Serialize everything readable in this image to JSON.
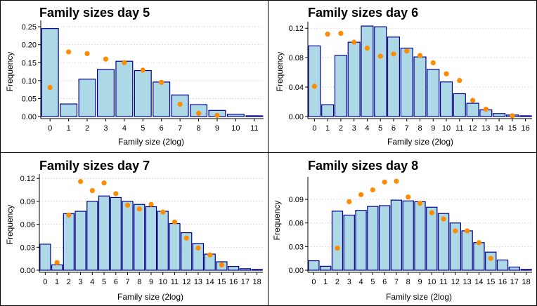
{
  "chart_data": [
    {
      "type": "bar",
      "title": "Family sizes day 5",
      "xlabel": "Family size (2log)",
      "ylabel": "Frequency",
      "categories": [
        "0",
        "1",
        "2",
        "3",
        "4",
        "5",
        "6",
        "7",
        "8",
        "9",
        "10",
        "11"
      ],
      "ylim": [
        0,
        0.26
      ],
      "yticks": [
        "0.00",
        "0.05",
        "0.10",
        "0.15",
        "0.20",
        "0.25"
      ],
      "ytick_values": [
        0,
        0.05,
        0.1,
        0.15,
        0.2,
        0.25
      ],
      "series": [
        {
          "kind": "bar",
          "values": [
            0.245,
            0.035,
            0.104,
            0.131,
            0.154,
            0.128,
            0.096,
            0.06,
            0.033,
            0.017,
            0.006,
            0.002
          ]
        },
        {
          "kind": "points",
          "values": [
            0.081,
            0.18,
            0.175,
            0.16,
            0.15,
            0.129,
            0.095,
            0.034,
            0.009,
            0.003,
            null,
            null
          ]
        }
      ],
      "grid": "horizontal dotted"
    },
    {
      "type": "bar",
      "title": "Family sizes day 6",
      "xlabel": "Family size (2log)",
      "ylabel": "Frequency",
      "categories": [
        "0",
        "1",
        "2",
        "3",
        "4",
        "5",
        "6",
        "7",
        "8",
        "9",
        "10",
        "11",
        "12",
        "13",
        "14",
        "15",
        "16"
      ],
      "ylim": [
        0,
        0.125
      ],
      "yticks": [
        "0.00",
        "0.04",
        "0.08",
        "0.12"
      ],
      "ytick_values": [
        0,
        0.04,
        0.08,
        0.12
      ],
      "series": [
        {
          "kind": "bar",
          "values": [
            0.096,
            0.016,
            0.083,
            0.101,
            0.123,
            0.122,
            0.108,
            0.093,
            0.081,
            0.064,
            0.047,
            0.031,
            0.018,
            0.009,
            0.004,
            0.002,
            0.001
          ]
        },
        {
          "kind": "points",
          "values": [
            0.041,
            0.112,
            0.113,
            0.101,
            0.093,
            0.082,
            0.085,
            0.089,
            0.083,
            0.073,
            0.058,
            0.049,
            0.022,
            0.01,
            null,
            0.001,
            null
          ]
        }
      ],
      "grid": "horizontal dotted"
    },
    {
      "type": "bar",
      "title": "Family sizes day 7",
      "xlabel": "Family size (2log)",
      "ylabel": "Frequency",
      "categories": [
        "0",
        "1",
        "2",
        "3",
        "4",
        "5",
        "6",
        "7",
        "8",
        "9",
        "10",
        "11",
        "12",
        "13",
        "14",
        "15",
        "16",
        "17",
        "18"
      ],
      "ylim": [
        0,
        0.122
      ],
      "yticks": [
        "0.00",
        "0.03",
        "0.06",
        "0.09",
        "0.12"
      ],
      "ytick_values": [
        0,
        0.03,
        0.06,
        0.09,
        0.12
      ],
      "series": [
        {
          "kind": "bar",
          "values": [
            0.034,
            0.007,
            0.074,
            0.077,
            0.09,
            0.097,
            0.095,
            0.09,
            0.086,
            0.083,
            0.077,
            0.061,
            0.049,
            0.035,
            0.021,
            0.011,
            0.005,
            0.002,
            0.001
          ]
        },
        {
          "kind": "points",
          "values": [
            null,
            0.01,
            0.072,
            0.116,
            0.104,
            0.114,
            0.1,
            0.085,
            0.08,
            0.086,
            0.076,
            0.063,
            0.042,
            0.029,
            0.02,
            0.007,
            null,
            null,
            null
          ]
        }
      ],
      "grid": "horizontal dotted"
    },
    {
      "type": "bar",
      "title": "Family sizes day 8",
      "xlabel": "Family size (2log)",
      "ylabel": "Frequency",
      "categories": [
        "0",
        "1",
        "2",
        "3",
        "4",
        "5",
        "6",
        "7",
        "8",
        "9",
        "10",
        "11",
        "12",
        "13",
        "14",
        "15",
        "16",
        "17",
        "18"
      ],
      "ylim": [
        0,
        0.115
      ],
      "yticks": [
        "0.00",
        "0.03",
        "0.06",
        "0.09"
      ],
      "ytick_values": [
        0,
        0.03,
        0.06,
        0.09
      ],
      "series": [
        {
          "kind": "bar",
          "values": [
            0.012,
            0.005,
            0.075,
            0.07,
            0.076,
            0.081,
            0.082,
            0.089,
            0.088,
            0.087,
            0.08,
            0.072,
            0.06,
            0.05,
            0.035,
            0.023,
            0.013,
            0.004,
            0.001
          ]
        },
        {
          "kind": "points",
          "values": [
            null,
            null,
            0.028,
            0.087,
            0.096,
            0.102,
            0.112,
            0.113,
            0.093,
            0.085,
            0.073,
            0.065,
            0.05,
            0.05,
            0.035,
            0.015,
            null,
            null,
            null
          ]
        }
      ],
      "grid": "horizontal dotted"
    }
  ]
}
